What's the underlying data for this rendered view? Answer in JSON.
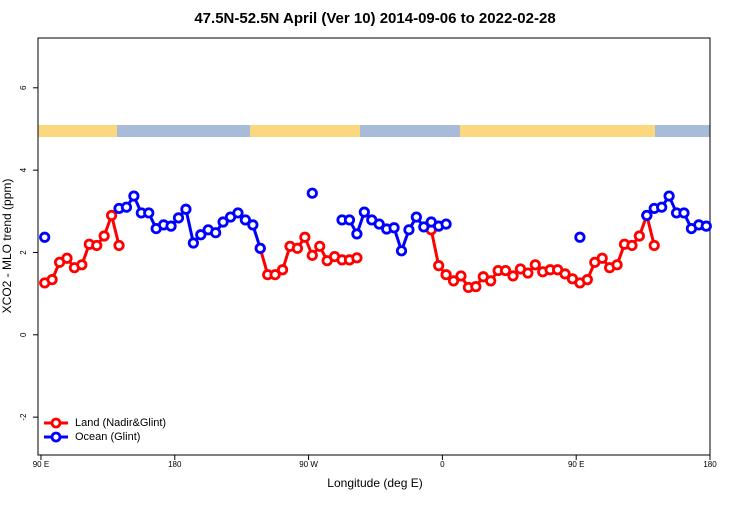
{
  "chart_data": {
    "type": "line",
    "title": "47.5N-52.5N April (Ver 10)   2014-09-06 to 2022-02-28",
    "x_label": "Longitude (deg E)",
    "y_label": "XCO2 - MLO trend (ppm)",
    "x": [
      92.5,
      97.5,
      102.5,
      107.5,
      112.5,
      117.5,
      122.5,
      127.5,
      132.5,
      137.5,
      142.5,
      147.5,
      152.5,
      157.5,
      162.5,
      167.5,
      172.5,
      177.5,
      182.5,
      187.5,
      192.5,
      197.5,
      202.5,
      207.5,
      212.5,
      217.5,
      222.5,
      227.5,
      232.5,
      237.5,
      242.5,
      247.5,
      252.5,
      257.5,
      262.5,
      267.5,
      272.5,
      277.5,
      282.5,
      287.5,
      292.5,
      297.5,
      302.5,
      307.5,
      312.5,
      317.5,
      322.5,
      327.5,
      332.5,
      337.5,
      342.5,
      347.5,
      352.5,
      357.5,
      362.5,
      367.5,
      372.5,
      377.5,
      382.5,
      387.5,
      392.5,
      397.5,
      402.5,
      407.5,
      412.5,
      417.5,
      422.5,
      427.5,
      432.5,
      437.5,
      442.5,
      447.5,
      452.5,
      457.5,
      462.5,
      467.5,
      472.5,
      477.5,
      482.5,
      487.5,
      492.5,
      497.5,
      502.5,
      507.5,
      512.5,
      517.5,
      522.5,
      527.5,
      532.5,
      537.5
    ],
    "series": [
      {
        "name": "Land (Nadir&Glint)",
        "color": "#ff0000",
        "values": [
          1.26,
          1.34,
          1.76,
          1.86,
          1.63,
          1.7,
          2.2,
          2.17,
          2.4,
          2.9,
          2.17,
          null,
          null,
          null,
          null,
          null,
          null,
          null,
          null,
          null,
          null,
          null,
          null,
          null,
          null,
          null,
          null,
          null,
          null,
          2.1,
          1.46,
          1.46,
          1.58,
          2.15,
          2.1,
          2.37,
          1.93,
          2.15,
          1.8,
          1.9,
          1.82,
          1.82,
          1.87,
          null,
          null,
          null,
          null,
          null,
          null,
          null,
          null,
          null,
          2.55,
          1.68,
          1.46,
          1.31,
          1.43,
          1.15,
          1.17,
          1.41,
          1.31,
          1.56,
          1.56,
          1.43,
          1.6,
          1.5,
          1.7,
          1.53,
          1.58,
          1.58,
          1.48,
          1.36,
          1.26,
          1.34,
          1.76,
          1.86,
          1.63,
          1.7,
          2.2,
          2.17,
          2.4,
          2.9,
          2.17,
          null,
          null,
          null,
          null,
          null,
          null,
          null
        ]
      },
      {
        "name": "Ocean (Glint)",
        "color": "#0000ff",
        "values": [
          2.37,
          null,
          null,
          null,
          null,
          null,
          null,
          null,
          null,
          null,
          3.07,
          3.1,
          3.37,
          2.96,
          2.96,
          2.58,
          2.67,
          2.64,
          2.84,
          3.05,
          2.23,
          2.43,
          2.55,
          2.48,
          2.74,
          2.86,
          2.96,
          2.79,
          2.67,
          2.1,
          null,
          null,
          null,
          null,
          null,
          null,
          3.44,
          null,
          null,
          null,
          2.79,
          2.79,
          2.45,
          2.98,
          2.79,
          2.69,
          2.57,
          2.6,
          2.04,
          2.55,
          2.86,
          2.62,
          2.74,
          2.64,
          2.69,
          null,
          null,
          null,
          null,
          null,
          null,
          null,
          null,
          null,
          null,
          null,
          null,
          null,
          null,
          null,
          null,
          null,
          2.37,
          null,
          null,
          null,
          null,
          null,
          null,
          null,
          null,
          2.9,
          3.07,
          3.1,
          3.37,
          2.96,
          2.96,
          2.58,
          2.67,
          2.64
        ]
      }
    ],
    "xlim": [
      88,
      540
    ],
    "xticks": [
      {
        "value": 90,
        "label": "90 E"
      },
      {
        "value": 180,
        "label": "180"
      },
      {
        "value": 270,
        "label": "90 W"
      },
      {
        "value": 360,
        "label": "0"
      },
      {
        "value": 450,
        "label": "90 E"
      },
      {
        "value": 540,
        "label": "180"
      }
    ],
    "ylim": [
      -2.92,
      7.21
    ],
    "yticks": [
      -2,
      0,
      2,
      4,
      6
    ],
    "legend": "bottom-left"
  }
}
